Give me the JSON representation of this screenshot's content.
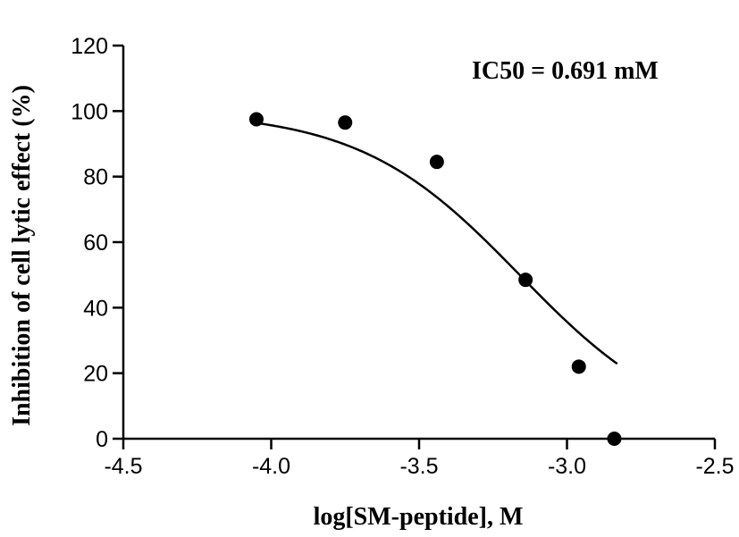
{
  "chart_data": {
    "type": "scatter",
    "xlabel": "log[SM-peptide], M",
    "ylabel": "Inhibition of cell lytic effect (%)",
    "xlim": [
      -4.5,
      -2.5
    ],
    "ylim": [
      0,
      120
    ],
    "x_ticks": [
      "-4.5",
      "-4.0",
      "-3.5",
      "-3.0",
      "-2.5"
    ],
    "y_ticks": [
      "0",
      "20",
      "40",
      "60",
      "80",
      "100",
      "120"
    ],
    "grid": false,
    "annotation": "IC50 = 0.691 mM",
    "series": [
      {
        "x": [
          -4.05,
          -3.75,
          -3.44,
          -3.14,
          -2.96,
          -2.84
        ],
        "y": [
          97.5,
          96.5,
          84.5,
          48.5,
          22,
          0
        ]
      }
    ],
    "fit": {
      "model": "sigmoidal dose-response",
      "top": 100,
      "bottom": 0,
      "log_ic50": -3.16,
      "hill_slope": -1.6,
      "x_range": [
        -4.05,
        -2.83
      ]
    },
    "colors": {
      "points": "#000000",
      "curve": "#000000",
      "axes": "#000000"
    }
  }
}
